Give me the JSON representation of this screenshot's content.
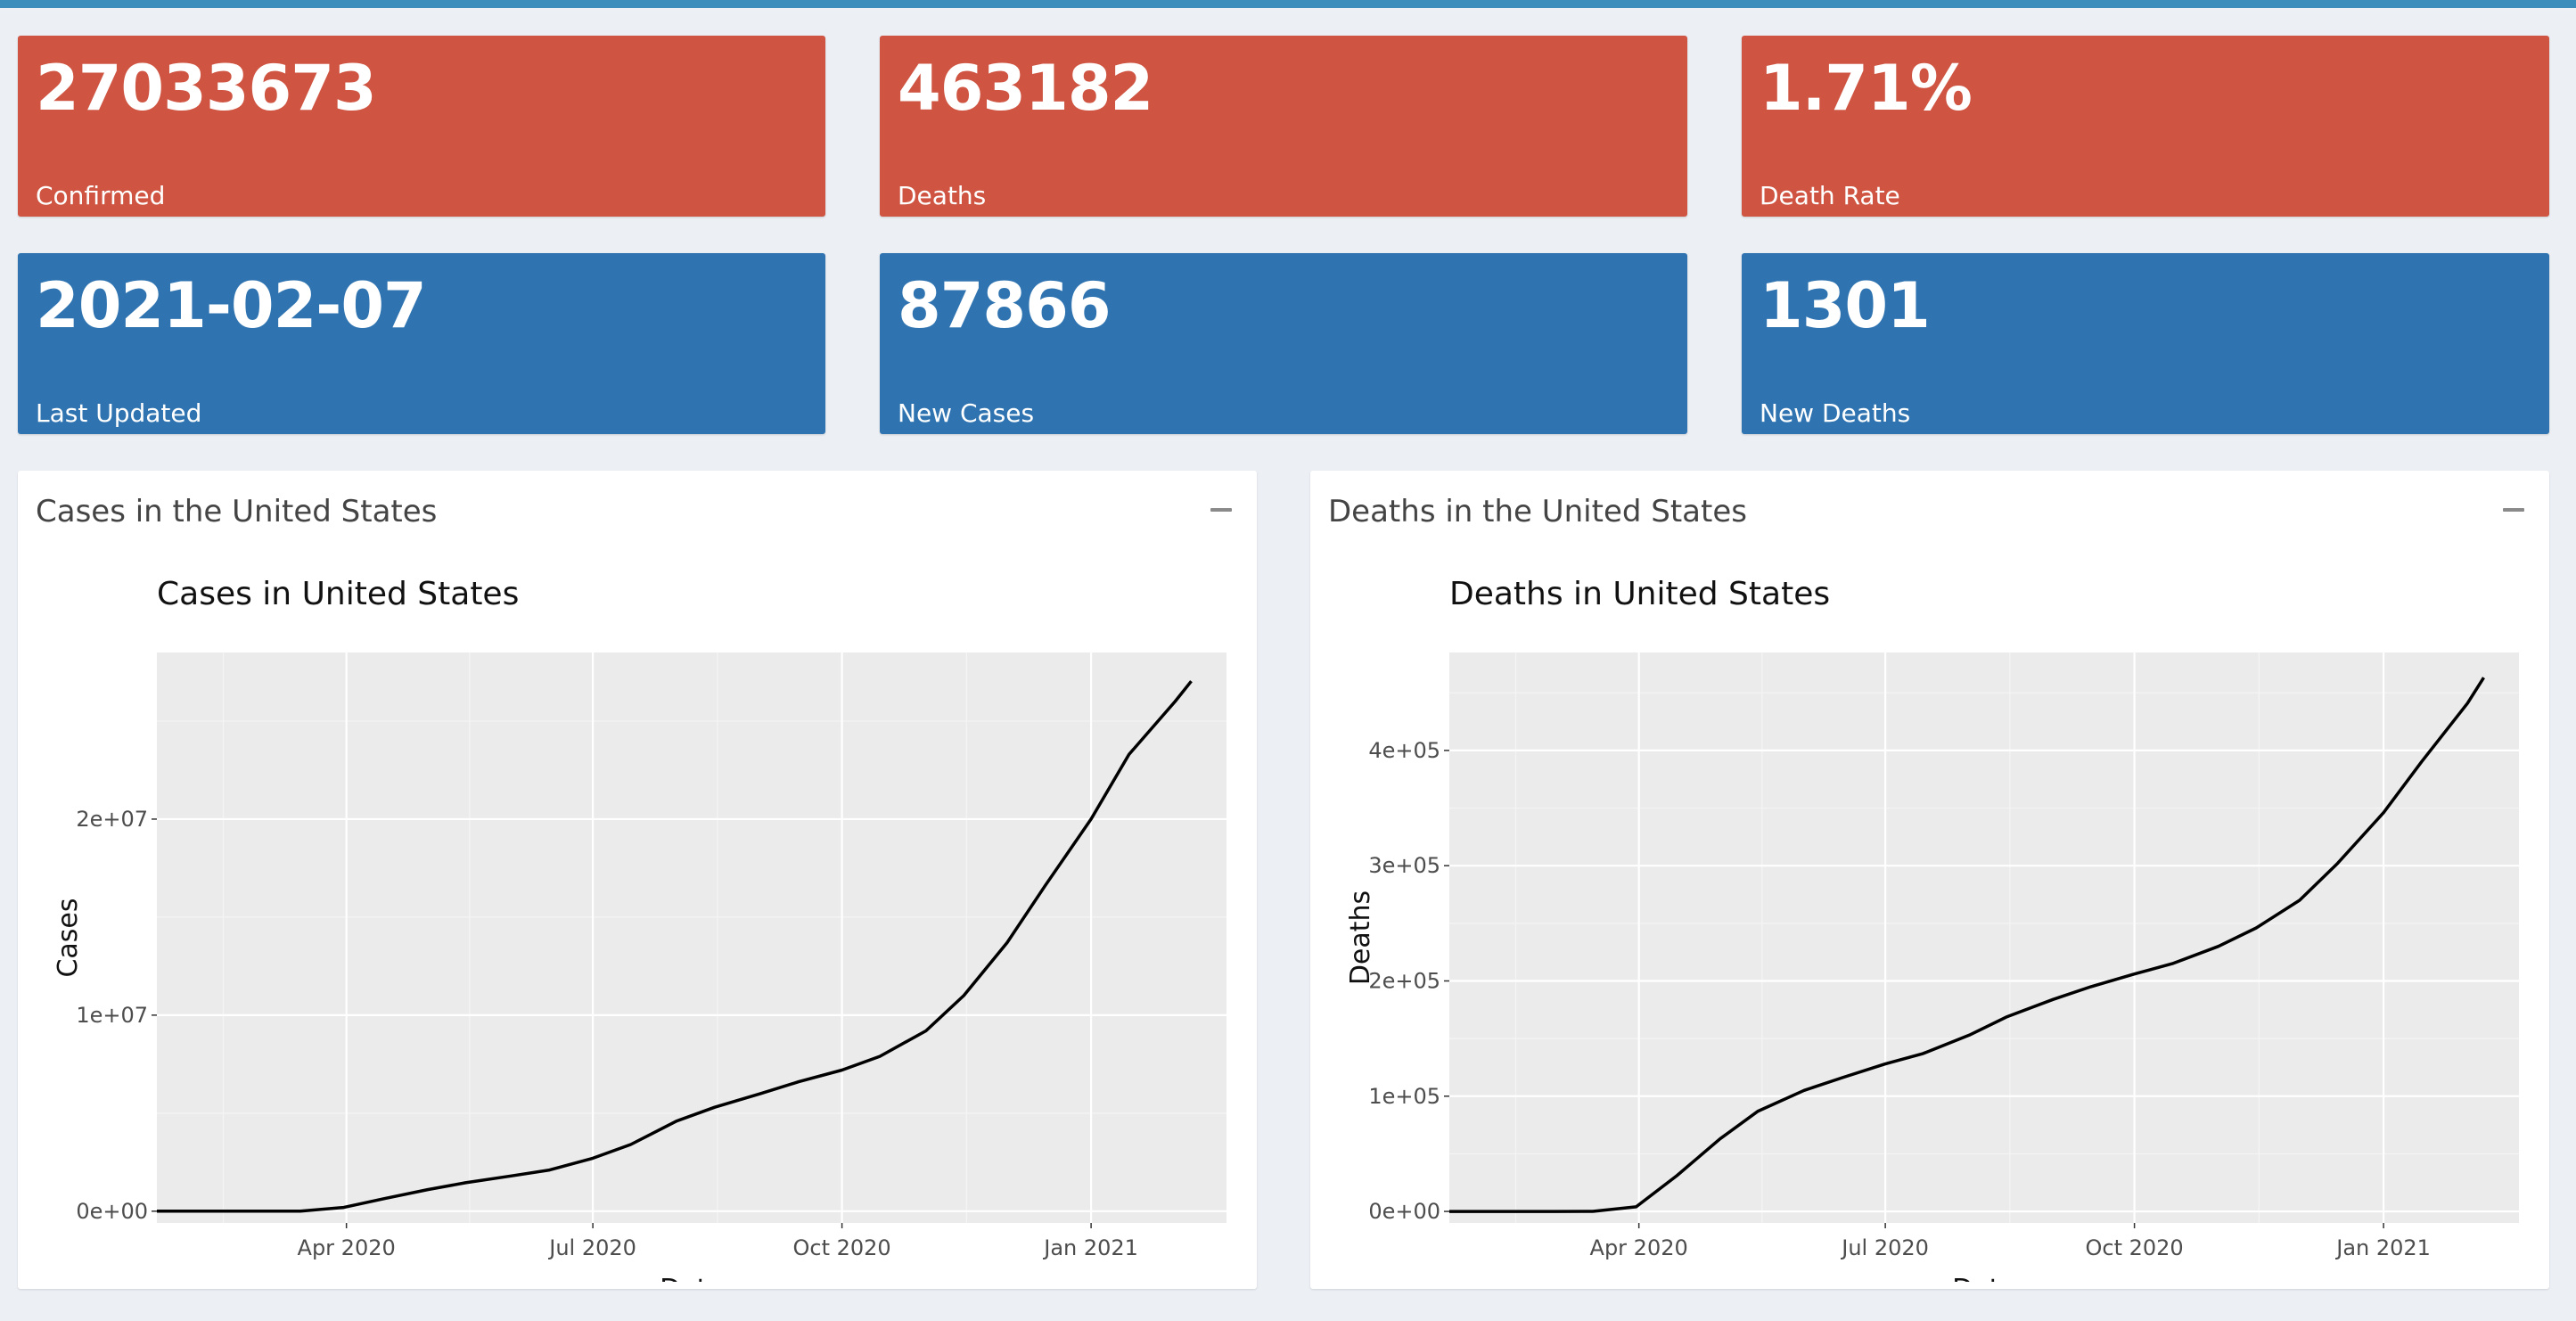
{
  "value_boxes": [
    {
      "value": "27033673",
      "label": "Confirmed",
      "color": "#cf5542"
    },
    {
      "value": "463182",
      "label": "Deaths",
      "color": "#cf5542"
    },
    {
      "value": "1.71%",
      "label": "Death Rate",
      "color": "#cf5542"
    },
    {
      "value": "2021-02-07",
      "label": "Last Updated",
      "color": "#2f74b1"
    },
    {
      "value": "87866",
      "label": "New Cases",
      "color": "#2f74b1"
    },
    {
      "value": "1301",
      "label": "New Deaths",
      "color": "#2f74b1"
    }
  ],
  "panels": [
    {
      "title": "Cases in the United States",
      "collapse_icon": "minus-icon"
    },
    {
      "title": "Deaths in the United States",
      "collapse_icon": "minus-icon"
    }
  ],
  "chart_data": [
    {
      "type": "line",
      "title": "Cases in United States",
      "xlabel": "Date",
      "ylabel": "Cases",
      "x_range": [
        "2020-01-22",
        "2021-02-20"
      ],
      "ylim": [
        -600000,
        28500000
      ],
      "x_ticks": [
        {
          "date": "2020-04-01",
          "label": "Apr 2020"
        },
        {
          "date": "2020-07-01",
          "label": "Jul 2020"
        },
        {
          "date": "2020-10-01",
          "label": "Oct 2020"
        },
        {
          "date": "2021-01-01",
          "label": "Jan 2021"
        }
      ],
      "y_ticks": [
        {
          "value": 0,
          "label": "0e+00"
        },
        {
          "value": 10000000,
          "label": "1e+07"
        },
        {
          "value": 20000000,
          "label": "2e+07"
        }
      ],
      "grid": true,
      "background": "#ebebeb",
      "line_color": "#000000",
      "points": [
        [
          "2020-01-22",
          0
        ],
        [
          "2020-03-01",
          75
        ],
        [
          "2020-03-15",
          3500
        ],
        [
          "2020-03-31",
          190000
        ],
        [
          "2020-04-15",
          640000
        ],
        [
          "2020-05-01",
          1100000
        ],
        [
          "2020-05-15",
          1450000
        ],
        [
          "2020-06-01",
          1800000
        ],
        [
          "2020-06-15",
          2100000
        ],
        [
          "2020-07-01",
          2700000
        ],
        [
          "2020-07-15",
          3400000
        ],
        [
          "2020-08-01",
          4600000
        ],
        [
          "2020-08-15",
          5300000
        ],
        [
          "2020-09-01",
          6000000
        ],
        [
          "2020-09-15",
          6600000
        ],
        [
          "2020-10-01",
          7200000
        ],
        [
          "2020-10-15",
          7900000
        ],
        [
          "2020-11-01",
          9200000
        ],
        [
          "2020-11-15",
          11000000
        ],
        [
          "2020-12-01",
          13700000
        ],
        [
          "2020-12-15",
          16600000
        ],
        [
          "2021-01-01",
          20000000
        ],
        [
          "2021-01-15",
          23300000
        ],
        [
          "2021-02-01",
          26000000
        ],
        [
          "2021-02-07",
          27033673
        ]
      ]
    },
    {
      "type": "line",
      "title": "Deaths in United States",
      "xlabel": "Date",
      "ylabel": "Deaths",
      "x_range": [
        "2020-01-22",
        "2021-02-20"
      ],
      "ylim": [
        -10000,
        485000
      ],
      "x_ticks": [
        {
          "date": "2020-04-01",
          "label": "Apr 2020"
        },
        {
          "date": "2020-07-01",
          "label": "Jul 2020"
        },
        {
          "date": "2020-10-01",
          "label": "Oct 2020"
        },
        {
          "date": "2021-01-01",
          "label": "Jan 2021"
        }
      ],
      "y_ticks": [
        {
          "value": 0,
          "label": "0e+00"
        },
        {
          "value": 100000,
          "label": "1e+05"
        },
        {
          "value": 200000,
          "label": "2e+05"
        },
        {
          "value": 300000,
          "label": "3e+05"
        },
        {
          "value": 400000,
          "label": "4e+05"
        }
      ],
      "grid": true,
      "background": "#ebebeb",
      "line_color": "#000000",
      "points": [
        [
          "2020-01-22",
          0
        ],
        [
          "2020-03-01",
          1
        ],
        [
          "2020-03-15",
          60
        ],
        [
          "2020-03-31",
          4000
        ],
        [
          "2020-04-15",
          31000
        ],
        [
          "2020-05-01",
          63000
        ],
        [
          "2020-05-15",
          87000
        ],
        [
          "2020-06-01",
          105000
        ],
        [
          "2020-06-15",
          116000
        ],
        [
          "2020-07-01",
          128000
        ],
        [
          "2020-07-15",
          137000
        ],
        [
          "2020-08-01",
          153000
        ],
        [
          "2020-08-15",
          169000
        ],
        [
          "2020-09-01",
          184000
        ],
        [
          "2020-09-15",
          195000
        ],
        [
          "2020-10-01",
          206000
        ],
        [
          "2020-10-15",
          215000
        ],
        [
          "2020-11-01",
          230000
        ],
        [
          "2020-11-15",
          246000
        ],
        [
          "2020-12-01",
          270000
        ],
        [
          "2020-12-15",
          302000
        ],
        [
          "2021-01-01",
          346000
        ],
        [
          "2021-01-15",
          390000
        ],
        [
          "2021-02-01",
          441000
        ],
        [
          "2021-02-07",
          463182
        ]
      ]
    }
  ]
}
